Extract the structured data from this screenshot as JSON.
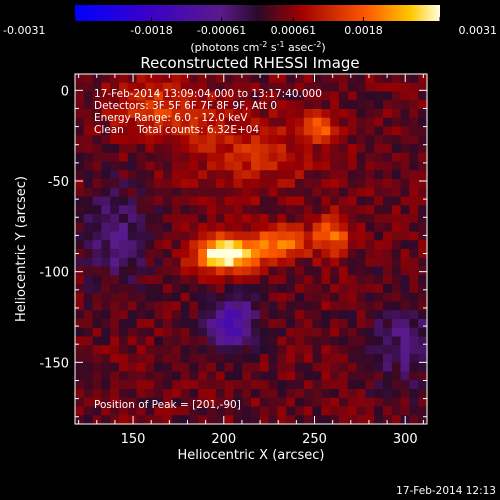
{
  "chart_data": {
    "type": "heatmap",
    "title": "Reconstructed RHESSI Image",
    "xlabel": "Heliocentric X (arcsec)",
    "ylabel": "Heliocentric Y (arcsec)",
    "xlim": [
      118,
      312
    ],
    "ylim": [
      -184,
      9
    ],
    "x_ticks": [
      150,
      200,
      250,
      300
    ],
    "y_ticks": [
      0,
      -50,
      -100,
      -150
    ],
    "colorbar": {
      "min": -0.0031,
      "max": 0.0031,
      "tick_values": [
        -0.0031,
        -0.0018,
        -0.00061,
        0.00061,
        0.0018,
        0.0031
      ],
      "tick_labels": [
        "-0.0031",
        "-0.0018",
        "-0.00061",
        "0.00061",
        "0.0018",
        "0.0031"
      ],
      "units_main": "(photons cm",
      "units_sup1": "-2",
      "units_mid1": " s",
      "units_sup2": "-1",
      "units_mid2": " asec",
      "units_sup3": "-2",
      "units_end": ")"
    },
    "annotations": {
      "time_range": "17-Feb-2014 13:09:04.000 to 13:17:40.000",
      "detectors": "Detectors: 3F 5F 6F 7F 8F 9F, Att 0",
      "energy": "Energy Range: 6.0 - 12.0 keV",
      "clean": "Clean    Total counts: 6.32E+04",
      "peak": "Position of Peak = [201,-90]"
    },
    "peak": {
      "x": 201,
      "y": -90
    },
    "sources": [
      {
        "x": 201,
        "y": -90,
        "amplitude": 0.0031,
        "sigma_x": 12,
        "sigma_y": 7
      },
      {
        "x": 232,
        "y": -84,
        "amplitude": 0.0017,
        "sigma_x": 10,
        "sigma_y": 6
      },
      {
        "x": 260,
        "y": -80,
        "amplitude": 0.0014,
        "sigma_x": 8,
        "sigma_y": 8
      },
      {
        "x": 252,
        "y": -20,
        "amplitude": 0.0015,
        "sigma_x": 7,
        "sigma_y": 5
      },
      {
        "x": 165,
        "y": -10,
        "amplitude": 0.001,
        "sigma_x": 20,
        "sigma_y": 12
      },
      {
        "x": 215,
        "y": -35,
        "amplitude": 0.0008,
        "sigma_x": 25,
        "sigma_y": 14
      },
      {
        "x": 205,
        "y": -128,
        "amplitude": -0.0016,
        "sigma_x": 10,
        "sigma_y": 10
      },
      {
        "x": 140,
        "y": -80,
        "amplitude": -0.0008,
        "sigma_x": 14,
        "sigma_y": 20
      },
      {
        "x": 300,
        "y": -140,
        "amplitude": -0.0007,
        "sigma_x": 15,
        "sigma_y": 20
      }
    ],
    "timestamp": "17-Feb-2014 12:13"
  }
}
